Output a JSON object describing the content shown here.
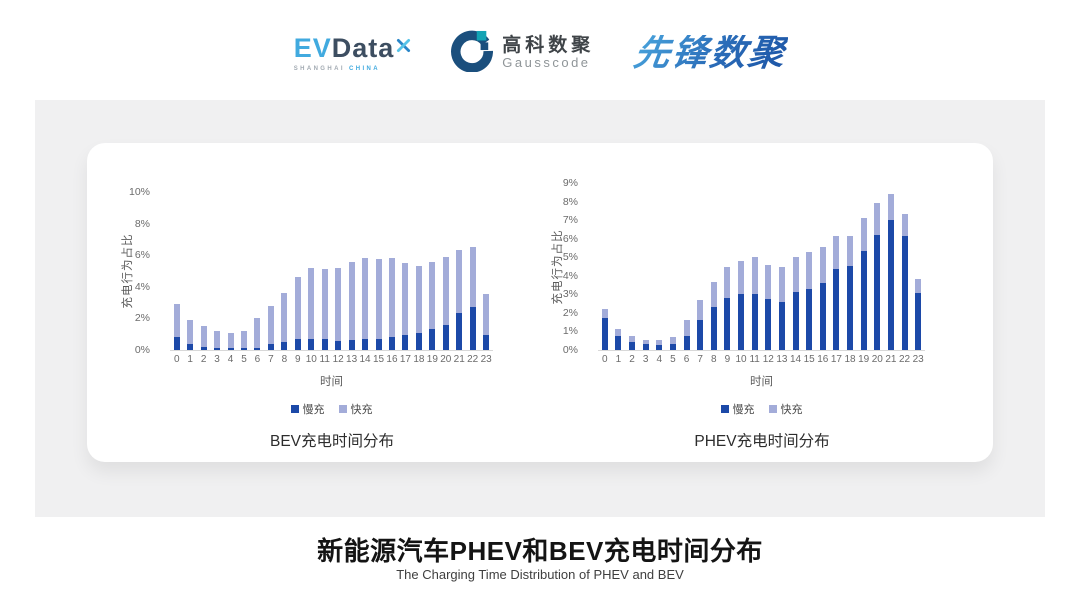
{
  "header": {
    "logos": {
      "evdata": {
        "ev": "EV",
        "data": "Data",
        "sub_left": "SHANGHAI",
        "sub_right": "CHINA"
      },
      "gausscode": {
        "cn": "高科数聚",
        "en": "Gausscode"
      },
      "xianfeng": {
        "text": "先锋数聚"
      }
    }
  },
  "icons": {
    "evdata_mark": "x-star-icon",
    "gausscode_mark": "g-ring-icon"
  },
  "colors": {
    "slow_charge": "#1c49a8",
    "fast_charge": "#a3acd9",
    "panel_bg": "#f0f0f1",
    "card_bg": "#ffffff",
    "axis_text": "#6b6b6b",
    "baseline": "#d8d8d8"
  },
  "footer": {
    "title": "新能源汽车PHEV和BEV充电时间分布",
    "subtitle": "The Charging Time Distribution of PHEV and BEV"
  },
  "chart_data": [
    {
      "type": "bar",
      "stacked": true,
      "title": "BEV充电时间分布",
      "xlabel": "时间",
      "ylabel": "充电行为占比",
      "grid": false,
      "legend_position": "bottom",
      "ylim": [
        0,
        10
      ],
      "ytick_step": 2,
      "categories": [
        "0",
        "1",
        "2",
        "3",
        "4",
        "5",
        "6",
        "7",
        "8",
        "9",
        "10",
        "11",
        "12",
        "13",
        "14",
        "15",
        "16",
        "17",
        "18",
        "19",
        "20",
        "21",
        "22",
        "23"
      ],
      "series": [
        {
          "name": "慢充",
          "color": "#1c49a8",
          "values": [
            0.8,
            0.4,
            0.2,
            0.15,
            0.1,
            0.1,
            0.15,
            0.4,
            0.5,
            0.7,
            0.7,
            0.7,
            0.6,
            0.65,
            0.7,
            0.7,
            0.85,
            0.95,
            1.1,
            1.3,
            1.6,
            2.35,
            2.7,
            0.95
          ]
        },
        {
          "name": "快充",
          "color": "#a3acd9",
          "values": [
            2.1,
            1.5,
            1.3,
            1.05,
            1.0,
            1.1,
            1.85,
            2.4,
            3.1,
            3.9,
            4.5,
            4.4,
            4.6,
            4.95,
            5.1,
            5.05,
            4.95,
            4.55,
            4.2,
            4.3,
            4.3,
            3.95,
            3.8,
            2.6
          ]
        }
      ]
    },
    {
      "type": "bar",
      "stacked": true,
      "title": "PHEV充电时间分布",
      "xlabel": "时间",
      "ylabel": "充电行为占比",
      "grid": false,
      "legend_position": "bottom",
      "ylim": [
        0,
        9
      ],
      "ytick_step": 1,
      "categories": [
        "0",
        "1",
        "2",
        "3",
        "4",
        "5",
        "6",
        "7",
        "8",
        "9",
        "10",
        "11",
        "12",
        "13",
        "14",
        "15",
        "16",
        "17",
        "18",
        "19",
        "20",
        "21",
        "22",
        "23"
      ],
      "series": [
        {
          "name": "慢充",
          "color": "#1c49a8",
          "values": [
            1.7,
            0.75,
            0.45,
            0.3,
            0.25,
            0.3,
            0.75,
            1.6,
            2.3,
            2.8,
            3.0,
            3.0,
            2.75,
            2.6,
            3.1,
            3.3,
            3.6,
            4.35,
            4.55,
            5.35,
            6.2,
            7.0,
            6.15,
            3.05
          ]
        },
        {
          "name": "快充",
          "color": "#a3acd9",
          "values": [
            0.5,
            0.4,
            0.3,
            0.25,
            0.3,
            0.4,
            0.85,
            1.1,
            1.35,
            1.7,
            1.8,
            2.0,
            1.85,
            1.85,
            1.9,
            2.0,
            1.95,
            1.8,
            1.6,
            1.75,
            1.7,
            1.4,
            1.2,
            0.8
          ]
        }
      ]
    }
  ]
}
